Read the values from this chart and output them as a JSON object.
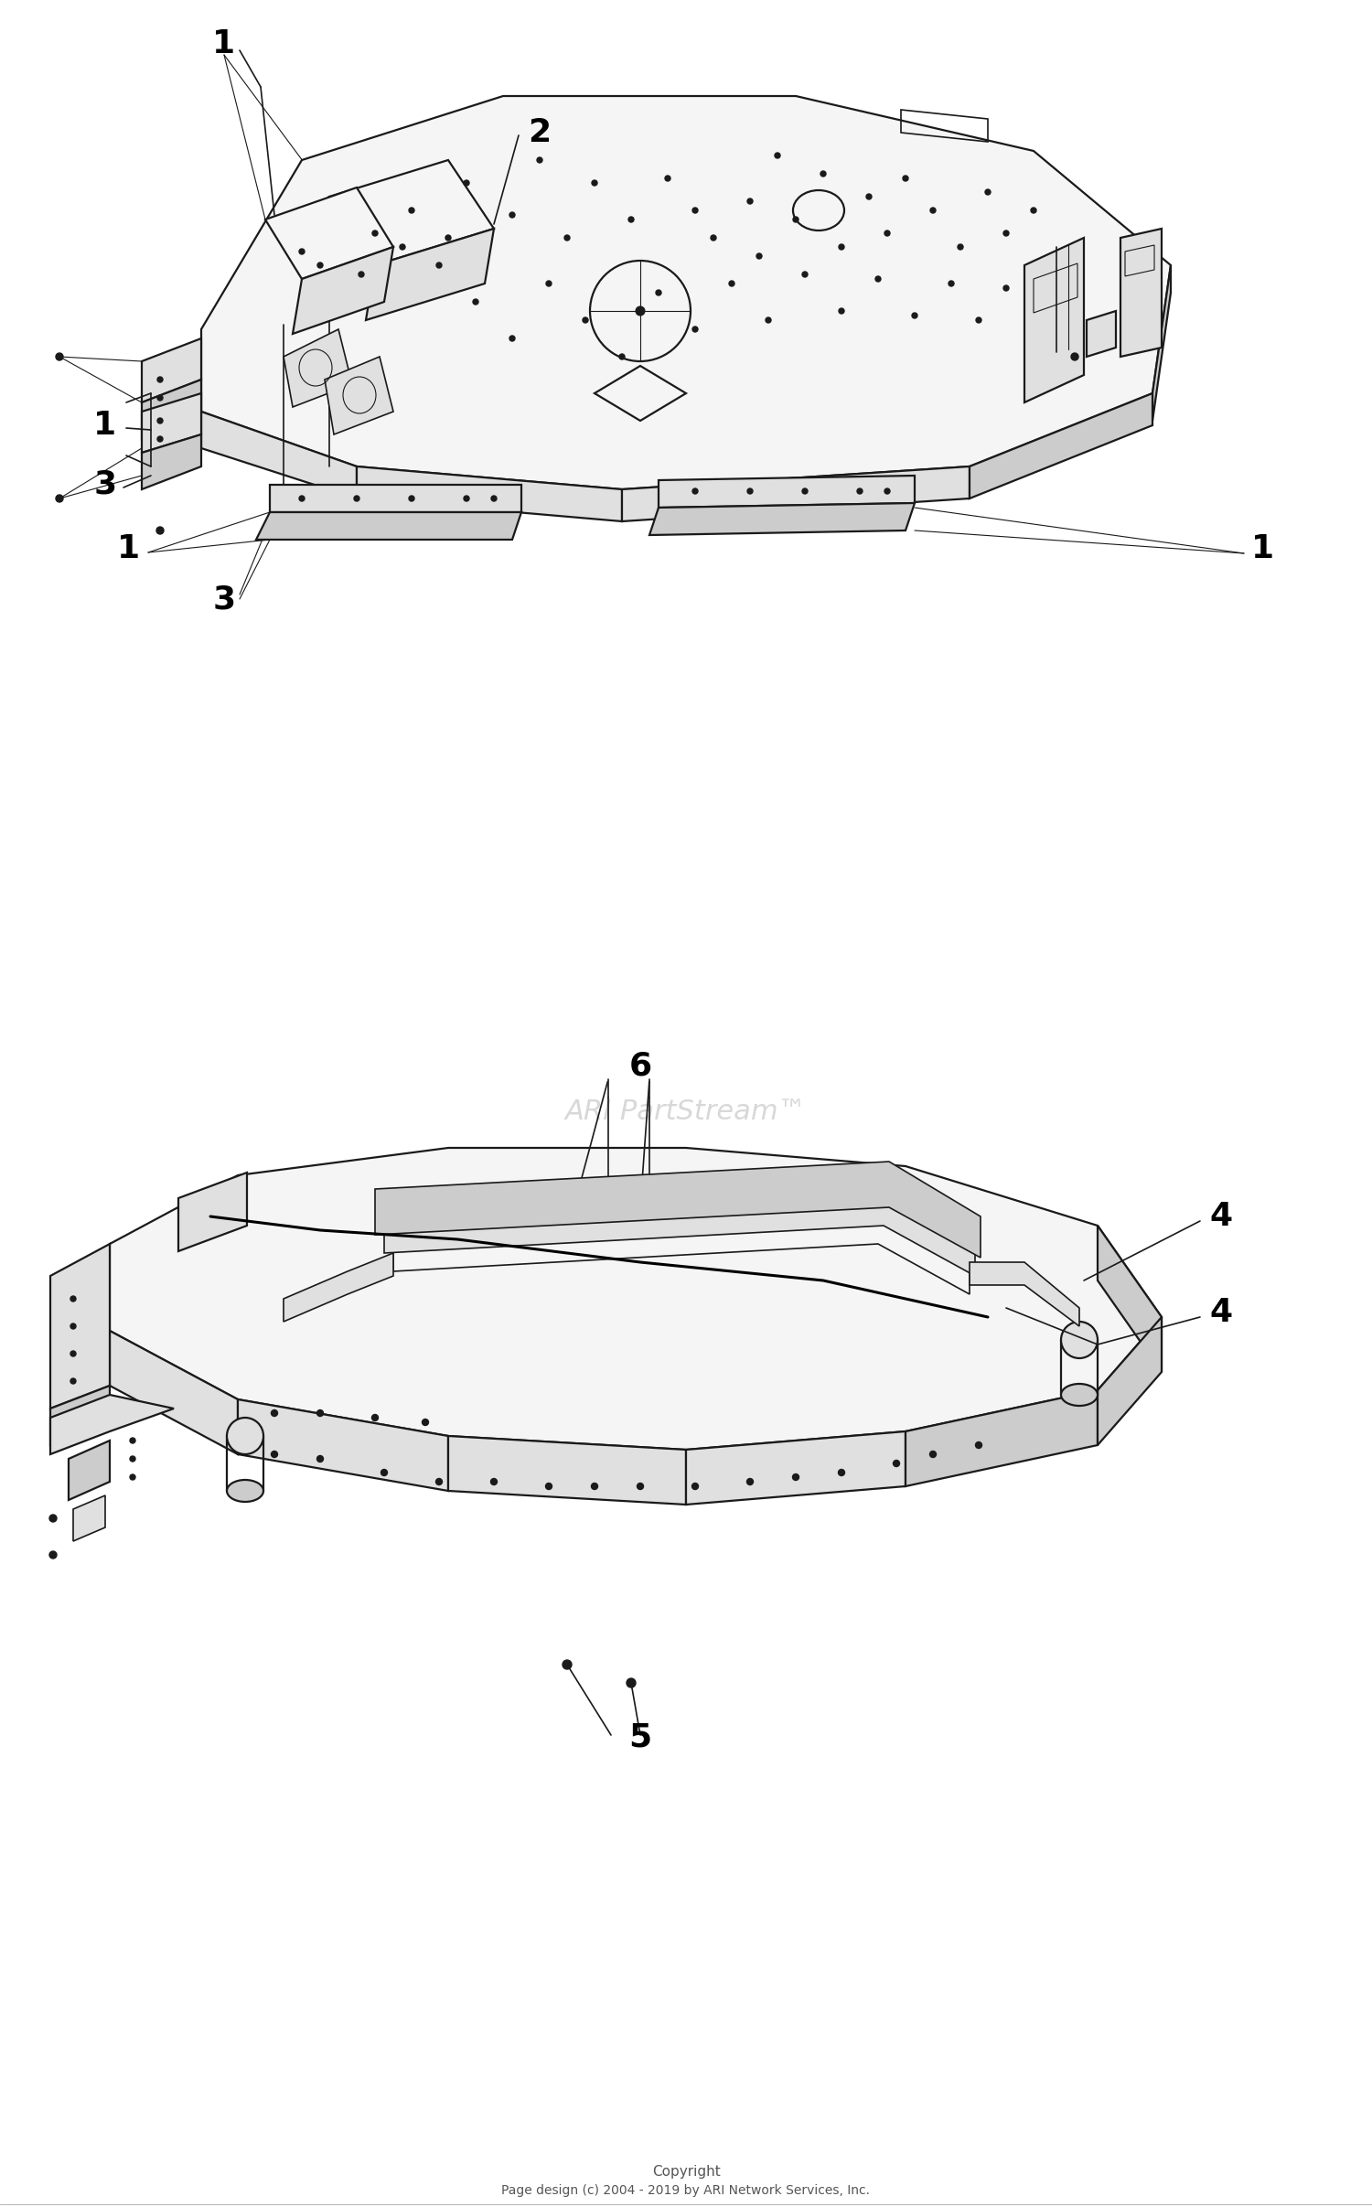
{
  "background_color": "#ffffff",
  "watermark_text": "ARI PartStream™",
  "watermark_color": "#c8c8c8",
  "copyright_line1": "Copyright",
  "copyright_line2": "Page design (c) 2004 - 2019 by ARI Network Services, Inc.",
  "lw_main": 1.6,
  "lw_med": 1.2,
  "lw_thin": 0.8,
  "color_line": "#1a1a1a",
  "color_face_light": "#f5f5f5",
  "color_face_mid": "#e0e0e0",
  "color_face_dark": "#cccccc",
  "color_face_darker": "#b8b8b8"
}
